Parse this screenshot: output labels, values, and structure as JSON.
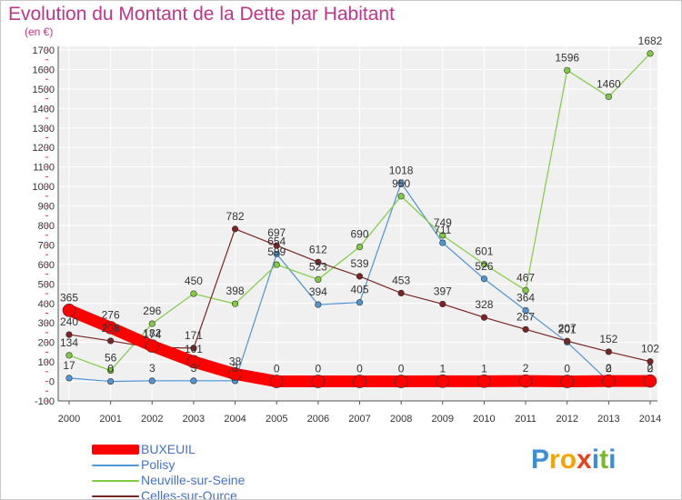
{
  "title": "Evolution du Montant de la Dette par Habitant",
  "subtitle": "(en €)",
  "brand": {
    "letters": [
      {
        "char": "P",
        "color": "#3a8fd6"
      },
      {
        "char": "r",
        "color": "#f5a300"
      },
      {
        "char": "o",
        "color": "#f5a300"
      },
      {
        "char": "x",
        "color": "#e8421c"
      },
      {
        "char": "i",
        "color": "#3a8fd6"
      },
      {
        "char": "t",
        "color": "#7ab829"
      },
      {
        "char": "i",
        "color": "#3a8fd6"
      }
    ]
  },
  "chart_data": {
    "type": "line",
    "title": "Evolution du Montant de la Dette par Habitant",
    "subtitle": "(en €)",
    "x": [
      2000,
      2001,
      2002,
      2003,
      2004,
      2005,
      2006,
      2007,
      2008,
      2009,
      2010,
      2011,
      2012,
      2013,
      2014
    ],
    "ylim": [
      -100,
      1700
    ],
    "yticks": [
      -100,
      0,
      100,
      200,
      300,
      400,
      500,
      600,
      700,
      800,
      900,
      1000,
      1100,
      1200,
      1300,
      1400,
      1500,
      1600,
      1700
    ],
    "grid": true,
    "legend_position": "bottom-left",
    "series": [
      {
        "name": "BUXEUIL",
        "color": "#ff0000",
        "values": [
          365,
          276,
          182,
          101,
          38,
          0,
          0,
          0,
          0,
          1,
          1,
          2,
          0,
          2,
          2
        ],
        "labels": [
          "365",
          "276",
          "182",
          "101",
          "38",
          "0",
          "0",
          "0",
          "0",
          "1",
          "1",
          "2",
          "0",
          "2",
          "2"
        ]
      },
      {
        "name": "Polisy",
        "color": "#4f95d4",
        "values": [
          17,
          0,
          3,
          3,
          3,
          654,
          394,
          405,
          1018,
          711,
          526,
          364,
          201,
          0,
          0
        ],
        "labels": [
          "17",
          "0",
          "3",
          "3",
          "3",
          "654",
          "394",
          "405",
          "1018",
          "711",
          "526",
          "364",
          "201",
          "0",
          "0"
        ]
      },
      {
        "name": "Neuville-sur-Seine",
        "color": "#7fcc40",
        "values": [
          134,
          56,
          296,
          450,
          398,
          599,
          523,
          690,
          950,
          749,
          601,
          467,
          1596,
          1460,
          1682
        ],
        "labels": [
          "134",
          "56",
          "296",
          "450",
          "398",
          "599",
          "523",
          "690",
          "950",
          "749",
          "601",
          "467",
          "1596",
          "1460",
          "1682"
        ]
      },
      {
        "name": "Celles-sur-Ource",
        "color": "#7a2424",
        "values": [
          240,
          208,
          174,
          171,
          782,
          697,
          612,
          539,
          453,
          397,
          328,
          267,
          207,
          152,
          102
        ],
        "labels": [
          "240",
          "208",
          "174",
          "171",
          "782",
          "697",
          "612",
          "539",
          "453",
          "397",
          "328",
          "267",
          "207",
          "152",
          "102"
        ]
      }
    ]
  }
}
